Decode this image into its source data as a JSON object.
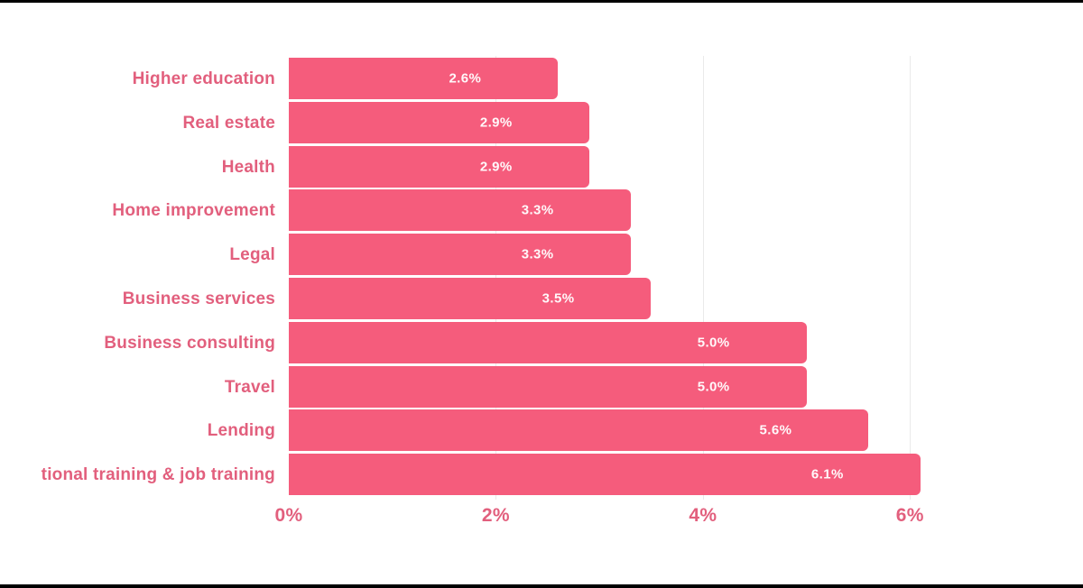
{
  "page": {
    "background": "#ffffff",
    "letterbox_color": "#000000"
  },
  "chart_data": {
    "type": "bar",
    "orientation": "horizontal",
    "title": "",
    "xlabel": "",
    "ylabel": "",
    "legend": "none",
    "grid": "vertical",
    "categories": [
      "Higher education",
      "Real estate",
      "Health",
      "Home improvement",
      "Legal",
      "Business services",
      "Business consulting",
      "Travel",
      "Lending",
      "tional training & job training"
    ],
    "values": [
      2.6,
      2.9,
      2.9,
      3.3,
      3.3,
      3.5,
      5.0,
      5.0,
      5.6,
      6.1
    ],
    "value_labels": [
      "2.6%",
      "2.9%",
      "2.9%",
      "3.3%",
      "3.3%",
      "3.5%",
      "5.0%",
      "5.0%",
      "5.6%",
      "6.1%"
    ],
    "x_tick_labels": [
      "0%",
      "2%",
      "4%",
      "6%"
    ],
    "x_tick_values": [
      0,
      2,
      4,
      6
    ],
    "xlim": [
      0,
      6.12
    ],
    "colors": {
      "bar": "#f55c7c",
      "category_label": "#e25f7d",
      "axis_label": "#e25f7d",
      "value_label": "#ffffff",
      "gridline": "#eaeaea"
    }
  }
}
